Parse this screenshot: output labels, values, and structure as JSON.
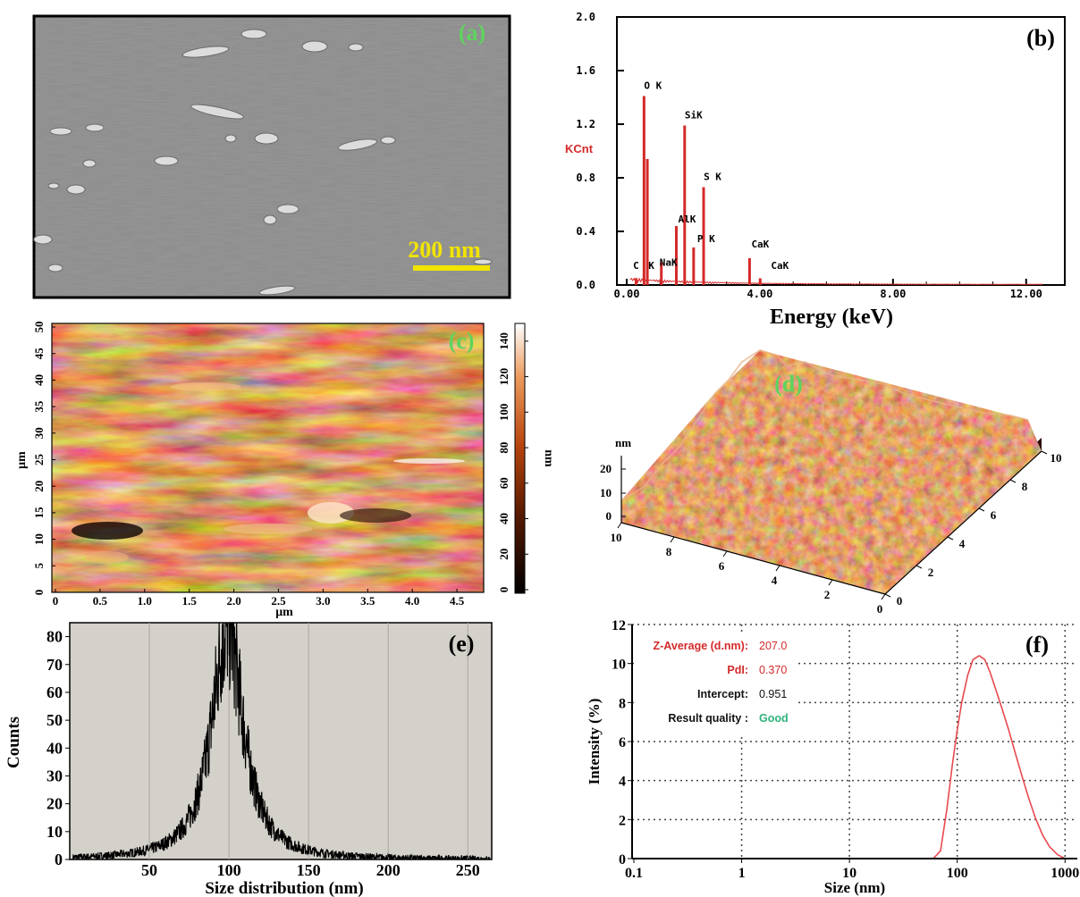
{
  "panels": {
    "a": {
      "label": "(a)",
      "scale_bar": "200 nm",
      "label_color": "#5fd35f",
      "scale_color": "#f1e400"
    },
    "b": {
      "label": "(b)",
      "ylabel": "KCnt",
      "xlabel": "Energy (keV)"
    },
    "c": {
      "label": "(c)",
      "xlabel": "μm",
      "ylabel": "μm",
      "cbar_label": "nm"
    },
    "d": {
      "label": "(d)",
      "zlabel": "nm"
    },
    "e": {
      "label": "(e)",
      "xlabel": "Size distribution (nm)",
      "ylabel": "Counts"
    },
    "f": {
      "label": "(f)",
      "xlabel": "Size (nm)",
      "ylabel": "Intensity (%)",
      "info": [
        {
          "key": "Z-Average (d.nm):",
          "value": "207.0",
          "key_color": "#d42a2a",
          "value_color": "#d42a2a"
        },
        {
          "key": "PdI:",
          "value": "0.370",
          "key_color": "#d42a2a",
          "value_color": "#d42a2a"
        },
        {
          "key": "Intercept:",
          "value": "0.951",
          "key_color": "#111111",
          "value_color": "#111111"
        },
        {
          "key": "Result quality :",
          "value": "Good",
          "key_color": "#111111",
          "value_color": "#2fb37a"
        }
      ]
    }
  },
  "chart_data": [
    {
      "id": "b",
      "type": "bar",
      "title": "",
      "xlabel": "Energy (keV)",
      "ylabel": "KCnt",
      "xlim": [
        0,
        13
      ],
      "ylim": [
        0,
        2.0
      ],
      "xticks": [
        "0.00",
        "4.00",
        "8.00",
        "12.00"
      ],
      "yticks": [
        "0.0",
        "0.4",
        "0.8",
        "1.2",
        "1.6",
        "2.0"
      ],
      "peaks": [
        {
          "x": 0.28,
          "y": 0.05,
          "label": "C"
        },
        {
          "x": 0.52,
          "y": 1.41,
          "label": "O K"
        },
        {
          "x": 0.62,
          "y": 0.94,
          "label": ""
        },
        {
          "x": 1.04,
          "y": 0.17,
          "label": "NaK"
        },
        {
          "x": 1.49,
          "y": 0.44,
          "label": "AlK"
        },
        {
          "x": 1.74,
          "y": 1.19,
          "label": "SiK"
        },
        {
          "x": 2.01,
          "y": 0.28,
          "label": "P K"
        },
        {
          "x": 2.31,
          "y": 0.73,
          "label": "S K"
        },
        {
          "x": 3.69,
          "y": 0.2,
          "label": "CaK"
        },
        {
          "x": 4.01,
          "y": 0.05,
          "label": "CaK"
        }
      ],
      "series_color": "#d42a2a"
    },
    {
      "id": "c",
      "type": "heatmap",
      "xlabel": "μm",
      "ylabel": "μm",
      "xlim": [
        0,
        4.8
      ],
      "ylim": [
        0,
        50
      ],
      "xticks": [
        "0",
        "0.5",
        "1.0",
        "1.5",
        "2.0",
        "2.5",
        "3.0",
        "3.5",
        "4.0",
        "4.5"
      ],
      "yticks": [
        "0",
        "5",
        "10",
        "15",
        "20",
        "25",
        "30",
        "35",
        "40",
        "45",
        "50"
      ],
      "colorbar_ticks": [
        "0",
        "20",
        "40",
        "60",
        "80",
        "100",
        "120",
        "140"
      ],
      "colorbar_range": [
        0,
        150
      ],
      "colorbar_label": "nm"
    },
    {
      "id": "d",
      "type": "other",
      "description_free": true,
      "zlabel": "nm",
      "zticks": [
        "0",
        "10",
        "20"
      ],
      "xticks": [
        "0",
        "2",
        "4",
        "6",
        "8",
        "10"
      ],
      "yticks": [
        "10",
        "8",
        "6",
        "4",
        "2",
        "0"
      ]
    },
    {
      "id": "e",
      "type": "line",
      "xlabel": "Size distribution (nm)",
      "ylabel": "Counts",
      "xlim": [
        0,
        265
      ],
      "ylim": [
        0,
        85
      ],
      "xticks": [
        "50",
        "100",
        "150",
        "200",
        "250"
      ],
      "yticks": [
        "0",
        "10",
        "20",
        "30",
        "40",
        "50",
        "60",
        "70",
        "80"
      ],
      "peak": {
        "x": 99,
        "y": 84
      },
      "series_color": "#000000",
      "background": "#d4d1ca"
    },
    {
      "id": "f",
      "type": "line",
      "xlabel": "Size (nm)",
      "ylabel": "Intensity (%)",
      "xscale": "log",
      "xlim": [
        0.1,
        1300
      ],
      "ylim": [
        0,
        12
      ],
      "xticks": [
        "0.1",
        "1",
        "10",
        "100",
        "1000"
      ],
      "yticks": [
        "0",
        "2",
        "4",
        "6",
        "8",
        "10",
        "12"
      ],
      "grid": true,
      "series_color": "#e8494f",
      "x": [
        60,
        70,
        80,
        90,
        100,
        110,
        125,
        140,
        160,
        180,
        200,
        230,
        260,
        300,
        350,
        400,
        460,
        530,
        620,
        720,
        850,
        1000
      ],
      "y": [
        0,
        0.4,
        2.5,
        4.8,
        6.6,
        8.0,
        9.4,
        10.2,
        10.4,
        10.2,
        9.6,
        8.6,
        7.7,
        6.6,
        5.3,
        4.2,
        3.1,
        2.1,
        1.2,
        0.6,
        0.2,
        0
      ]
    }
  ]
}
